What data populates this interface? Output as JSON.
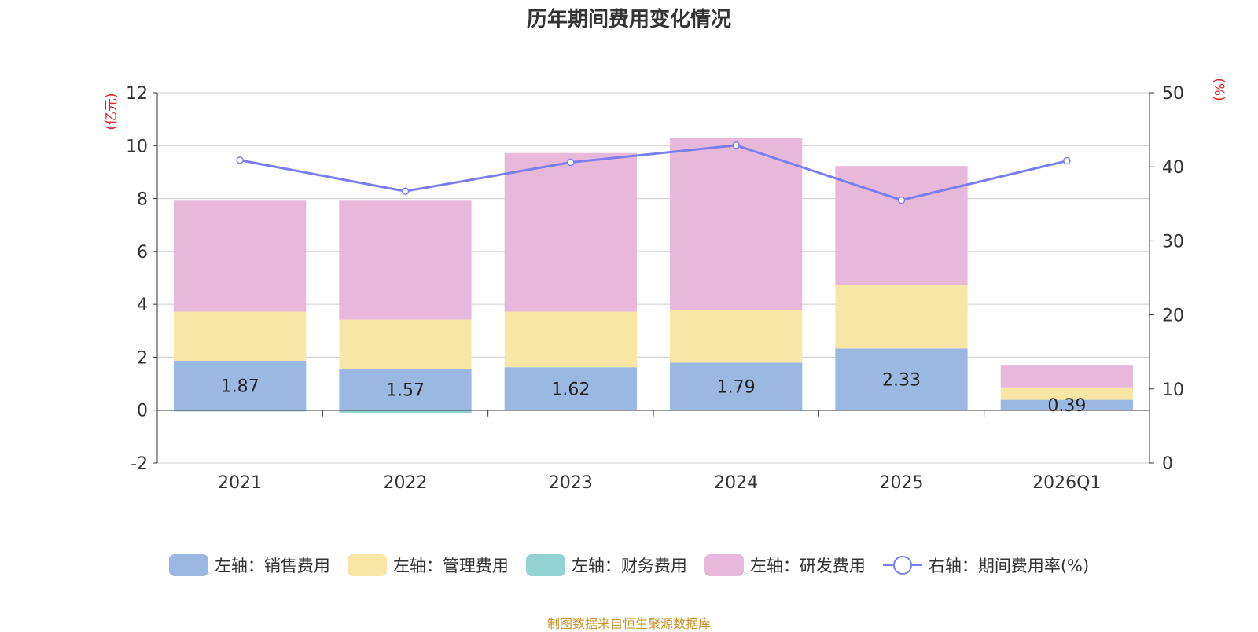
{
  "chart_data": {
    "type": "bar",
    "title": "历年期间费用变化情况",
    "categories": [
      "2021",
      "2022",
      "2023",
      "2024",
      "2025",
      "2026Q1"
    ],
    "left_axis": {
      "unit": "(亿元)",
      "range": [
        -2,
        12
      ],
      "ticks": [
        -2,
        0,
        2,
        4,
        6,
        8,
        10,
        12
      ]
    },
    "right_axis": {
      "unit": "(%)",
      "range": [
        0,
        50
      ],
      "ticks": [
        0,
        10,
        20,
        30,
        40,
        50
      ]
    },
    "series": [
      {
        "name": "左轴：销售费用",
        "stack": true,
        "color": "#9bb8e2",
        "values": [
          1.87,
          1.57,
          1.62,
          1.79,
          2.33,
          0.39
        ],
        "show_labels": true
      },
      {
        "name": "左轴：管理费用",
        "stack": true,
        "color": "#f8e6a6",
        "values": [
          1.85,
          1.85,
          2.1,
          2.0,
          2.4,
          0.47
        ]
      },
      {
        "name": "左轴：财务费用",
        "stack": true,
        "color": "#92d2d3",
        "values": [
          -0.05,
          -0.12,
          0.0,
          0.0,
          0.0,
          0.0
        ]
      },
      {
        "name": "左轴：研发费用",
        "stack": true,
        "color": "#e7b8da",
        "values": [
          4.2,
          4.5,
          6.0,
          6.5,
          4.5,
          0.85
        ]
      },
      {
        "name": "右轴：期间费用率(%)",
        "type": "line",
        "axis": "right",
        "color": "#7a7ef0",
        "values": [
          40.9,
          36.7,
          40.6,
          42.9,
          35.5,
          40.8
        ]
      }
    ],
    "grid": true,
    "legend_position": "bottom"
  },
  "source_note": "制图数据来自恒生聚源数据库"
}
